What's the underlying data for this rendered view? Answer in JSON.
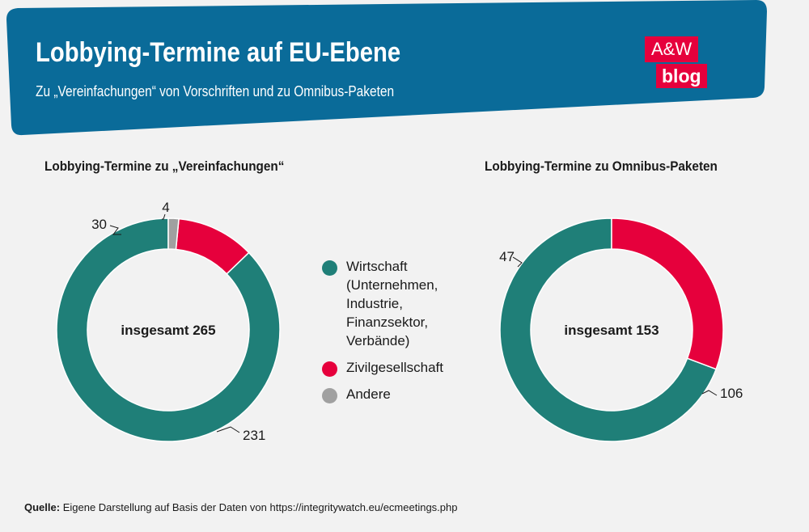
{
  "header": {
    "title": "Lobbying-Termine auf EU-Ebene",
    "subtitle": "Zu „Vereinfachungen“ von Vorschriften und zu Omnibus-Paketen",
    "logo_line1": "A&W",
    "logo_line2": "blog"
  },
  "colors": {
    "banner": "#0a6b99",
    "wirtschaft": "#1f7f78",
    "zivilgesellschaft": "#e6003c",
    "andere": "#a0a0a0",
    "logo": "#e6003c"
  },
  "legend": [
    {
      "label": "Wirtschaft (Unternehmen, Industrie, Finanzsektor, Verbände)",
      "color": "#1f7f78"
    },
    {
      "label": "Zivilgesellschaft",
      "color": "#e6003c"
    },
    {
      "label": "Andere",
      "color": "#a0a0a0"
    }
  ],
  "chart_data": [
    {
      "type": "pie",
      "title": "Lobbying-Termine zu „Vereinfachungen“",
      "center_label": "insgesamt 265",
      "categories": [
        "Wirtschaft",
        "Zivilgesellschaft",
        "Andere"
      ],
      "values": [
        231,
        30,
        4
      ],
      "data_labels": [
        "231",
        "30",
        "4"
      ],
      "colors": [
        "#1f7f78",
        "#e6003c",
        "#a0a0a0"
      ]
    },
    {
      "type": "pie",
      "title": "Lobbying-Termine zu Omnibus-Paketen",
      "center_label": "insgesamt 153",
      "categories": [
        "Wirtschaft",
        "Zivilgesellschaft"
      ],
      "values": [
        106,
        47
      ],
      "data_labels": [
        "106",
        "47"
      ],
      "colors": [
        "#1f7f78",
        "#e6003c"
      ]
    }
  ],
  "source": {
    "label": "Quelle:",
    "text": " Eigene Darstellung auf Basis der Daten von https://integritywatch.eu/ecmeetings.php"
  }
}
